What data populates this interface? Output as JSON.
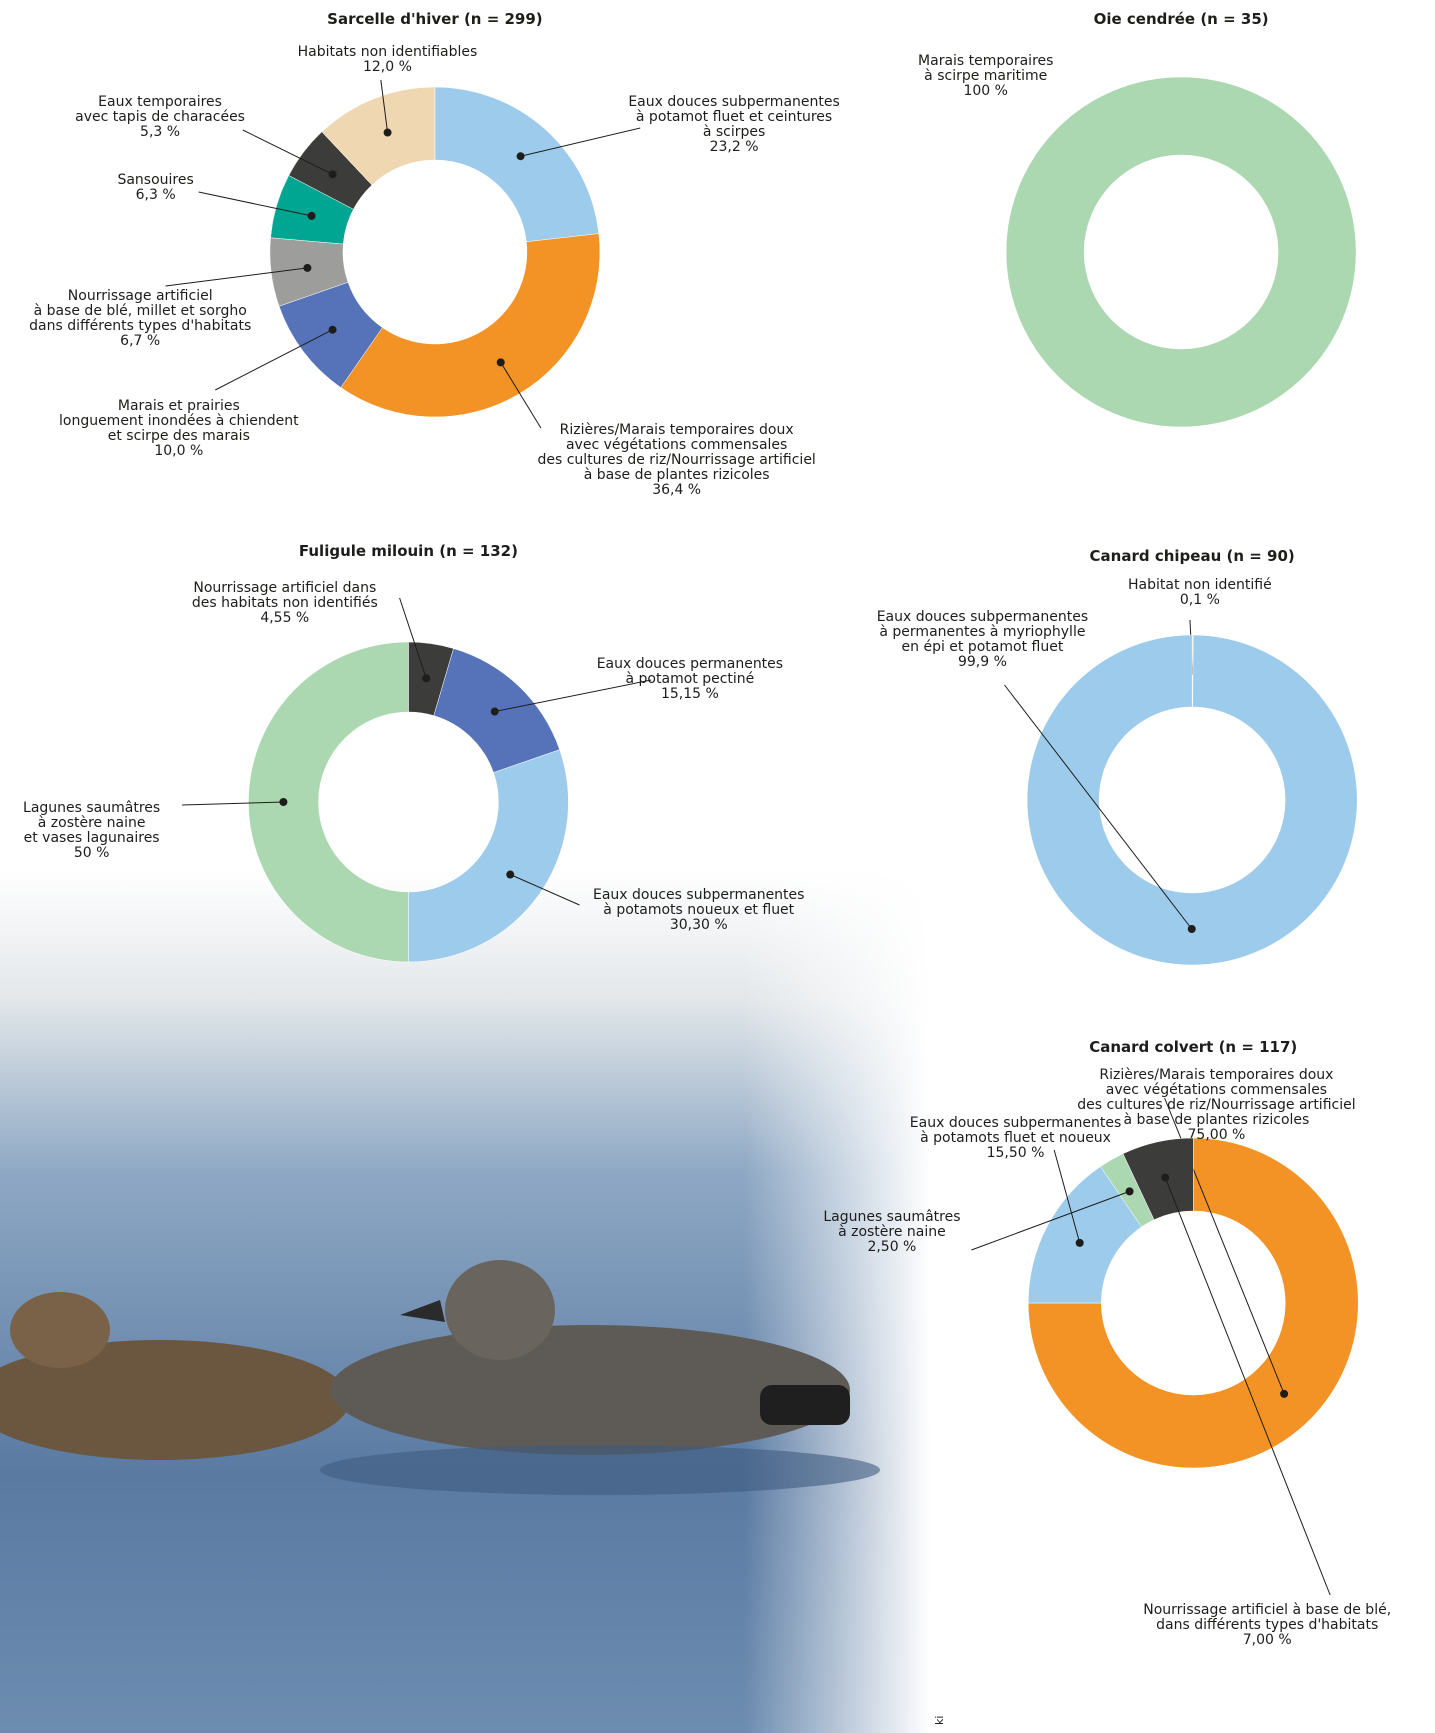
{
  "chart_data": [
    {
      "type": "pie",
      "title": "Sarcelle d'hiver (n = 299)",
      "categories": [
        "Eaux douces subpermanentes\nà potamot fluet et ceintures\nà scirpes",
        "Rizières/Marais temporaires doux\navec végétations commensales\ndes cultures de riz/Nourrissage artificiel\nà base de plantes rizicoles",
        "Marais et prairies\nlonguement inondées à chiendent\net scirpe des marais",
        "Nourrissage artificiel\nà base de blé, millet et sorgho\ndans différents types d'habitats",
        "Sansouires",
        "Eaux temporaires\navec tapis de characées",
        "Habitats non identifiables"
      ],
      "values": [
        23.2,
        36.4,
        10.0,
        6.7,
        6.3,
        5.3,
        12.0
      ],
      "value_labels": [
        "23,2 %",
        "36,4 %",
        "10,0 %",
        "6,7 %",
        "6,3 %",
        "5,3 %",
        "12,0 %"
      ],
      "colors": [
        "#9dcbeb",
        "#f39325",
        "#5673b9",
        "#9d9d9c",
        "#00a691",
        "#3c3c3b",
        "#efd8b1"
      ]
    },
    {
      "type": "pie",
      "title": "Oie cendrée (n = 35)",
      "categories": [
        "Marais temporaires\nà scirpe maritime"
      ],
      "values": [
        100
      ],
      "value_labels": [
        "100 %"
      ],
      "colors": [
        "#acd8b1"
      ]
    },
    {
      "type": "pie",
      "title": "Fuligule milouin (n = 132)",
      "categories": [
        "Nourrissage artificiel dans\ndes habitats non identifiés",
        "Eaux douces permanentes\nà potamot pectiné",
        "Eaux douces subpermanentes\nà potamots noueux et fluet",
        "Lagunes saumâtres\nà zostère naine\net vases lagunaires"
      ],
      "values": [
        4.55,
        15.15,
        30.3,
        50
      ],
      "value_labels": [
        "4,55 %",
        "15,15 %",
        "30,30 %",
        "50 %"
      ],
      "colors": [
        "#3c3c3b",
        "#5673b9",
        "#9dcbeb",
        "#acd8b1"
      ]
    },
    {
      "type": "pie",
      "title": "Canard chipeau (n = 90)",
      "categories": [
        "Habitat non identifié",
        "Eaux douces subpermanentes\nà permanentes à myriophylle\nen épi et potamot fluet"
      ],
      "values": [
        0.1,
        99.9
      ],
      "value_labels": [
        "0,1 %",
        "99,9 %"
      ],
      "colors": [
        "#efd8b1",
        "#9dcbeb"
      ]
    },
    {
      "type": "pie",
      "title": "Canard colvert (n = 117)",
      "categories": [
        "Rizières/Marais temporaires doux\navec végétations commensales\ndes cultures de riz/Nourrissage artificiel\nà base de plantes rizicoles",
        "Eaux douces subpermanentes\nà potamots fluet et noueux",
        "Lagunes saumâtres\nà zostère naine",
        "Nourrissage artificiel à base de blé,\ndans différents types d'habitats"
      ],
      "values": [
        75.0,
        15.5,
        2.5,
        7.0
      ],
      "value_labels": [
        "75,00 %",
        "15,50 %",
        "2,50 %",
        "7,00 %"
      ],
      "colors": [
        "#f39325",
        "#9dcbeb",
        "#acd8b1",
        "#3c3c3b"
      ]
    }
  ]
}
